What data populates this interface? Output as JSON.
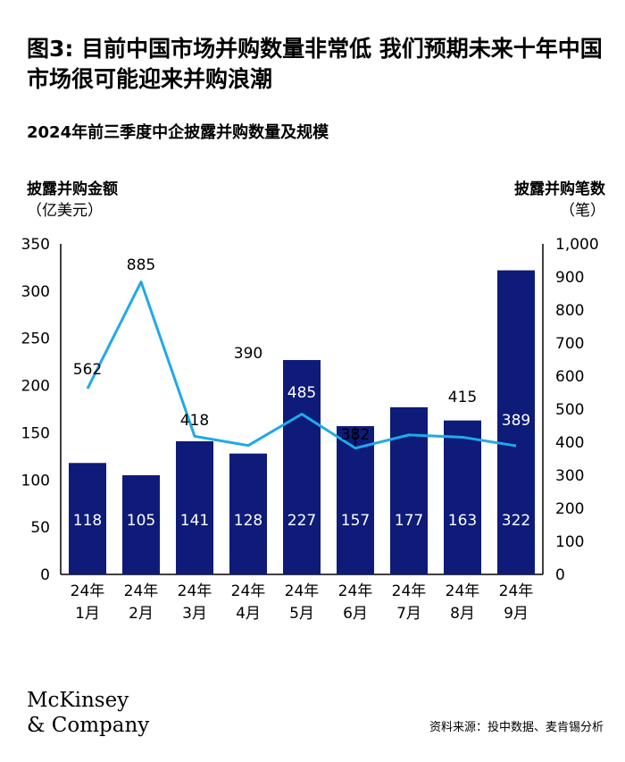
{
  "title": "图3: 目前中国市场并购数量非常低 我们预期未来十年中国市场很可能迎来并购浪潮",
  "subtitle": "2024年前三季度中企披露并购数量及规模",
  "left_axis": {
    "label": "披露并购金额",
    "unit": "（亿美元）"
  },
  "right_axis": {
    "label": "披露并购笔数",
    "unit": "（笔）"
  },
  "colors": {
    "bar": "#0e1b79",
    "line": "#1fa9e9",
    "axis": "#000000",
    "bar_label": "#ffffff"
  },
  "logo": {
    "line1": "McKinsey",
    "line2": "& Company"
  },
  "source": "资料来源：投中数据、麦肯锡分析",
  "chart_data": {
    "type": "bar",
    "categories": [
      "24年 1月",
      "24年 2月",
      "24年 3月",
      "24年 4月",
      "24年 5月",
      "24年 6月",
      "24年 7月",
      "24年 8月",
      "24年 9月"
    ],
    "series": [
      {
        "name": "披露并购金额",
        "axis": "left",
        "type": "bar",
        "values": [
          118,
          105,
          141,
          128,
          227,
          157,
          177,
          163,
          322
        ]
      },
      {
        "name": "披露并购笔数",
        "axis": "right",
        "type": "line",
        "values": [
          562,
          885,
          418,
          390,
          485,
          382,
          422,
          415,
          389
        ]
      }
    ],
    "left_axis": {
      "ylim": [
        0,
        350
      ],
      "ticks": [
        "0",
        "50",
        "100",
        "150",
        "200",
        "250",
        "300",
        "350"
      ]
    },
    "right_axis": {
      "ylim": [
        0,
        1000
      ],
      "ticks": [
        "0",
        "100",
        "200",
        "300",
        "400",
        "500",
        "600",
        "700",
        "800",
        "900",
        "1,000"
      ]
    },
    "grid": false,
    "legend": "none"
  }
}
